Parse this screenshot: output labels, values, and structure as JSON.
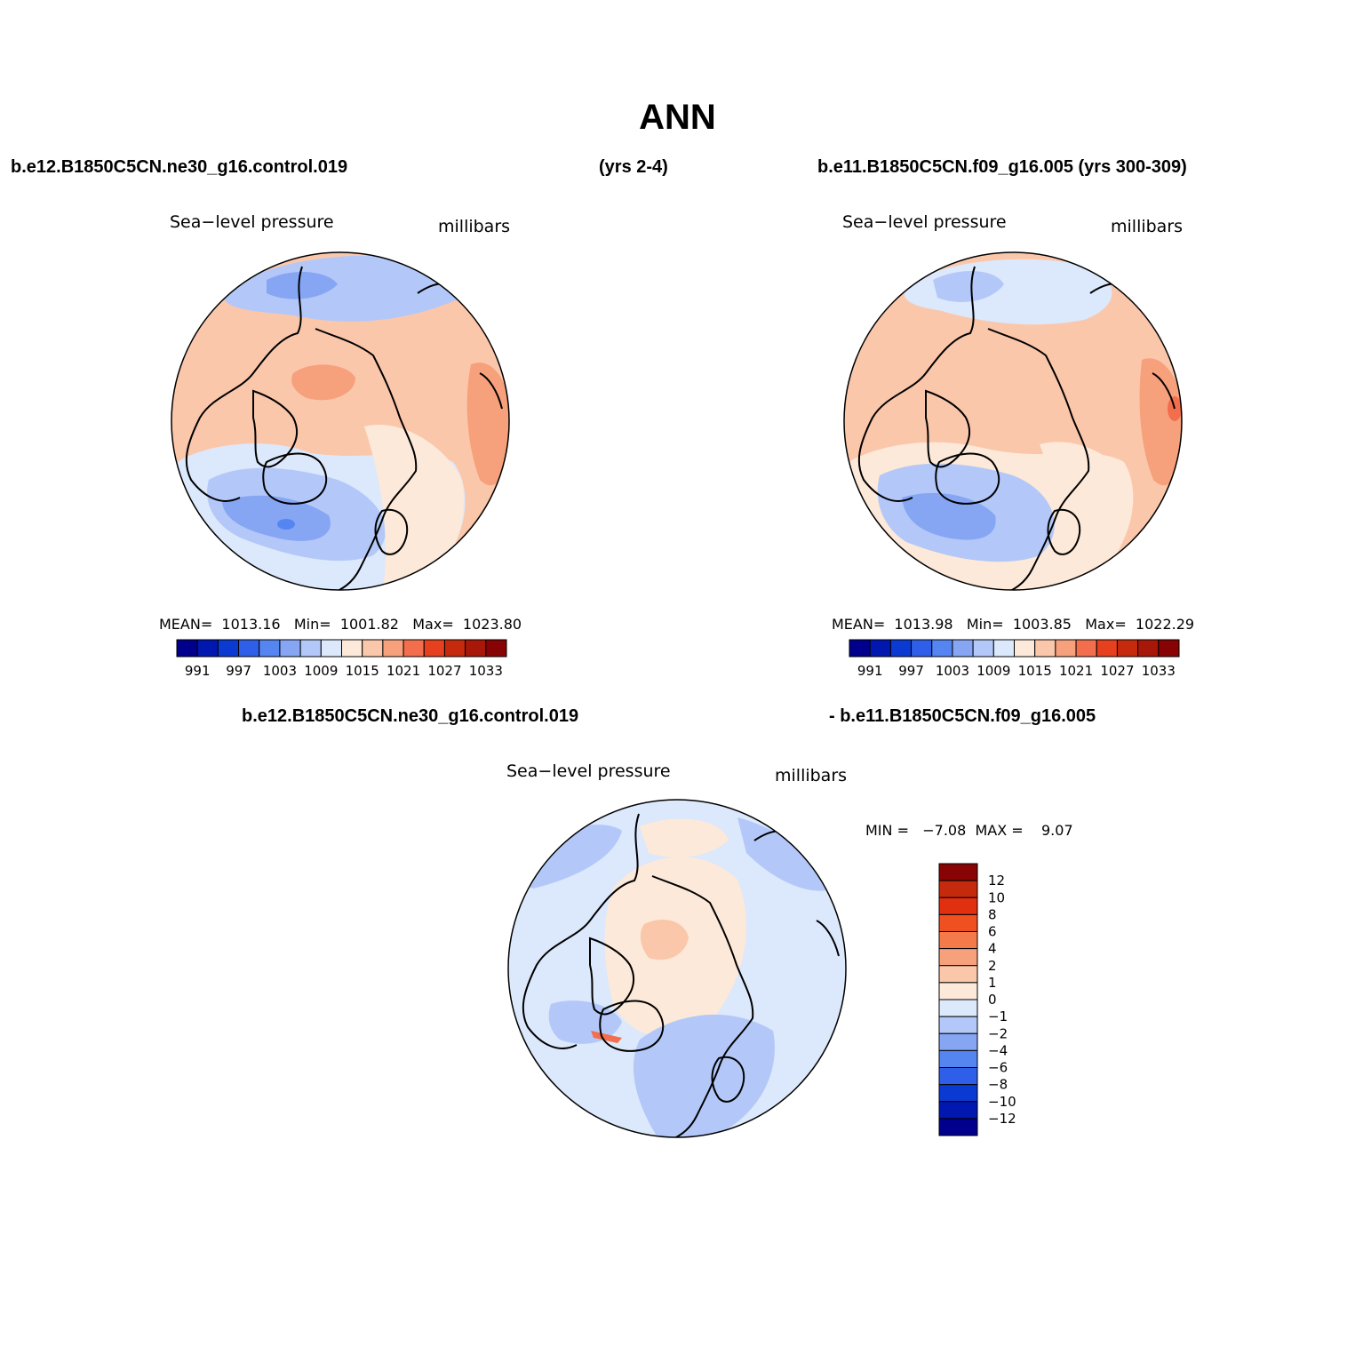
{
  "title": "ANN",
  "headers": {
    "left_case": "b.e12.B1850C5CN.ne30_g16.control.019",
    "left_years": "(yrs 2-4)",
    "right_case": "b.e11.B1850C5CN.f09_g16.005 (yrs 300-309)",
    "diff_case_a": "b.e12.B1850C5CN.ne30_g16.control.019",
    "diff_case_b": "- b.e11.B1850C5CN.f09_g16.005"
  },
  "panels": [
    {
      "variable": "Sea−level pressure",
      "units": "millibars",
      "stats": {
        "mean_label": "MEAN=",
        "mean": "1013.16",
        "min_label": "Min=",
        "min": "1001.82",
        "max_label": "Max=",
        "max": "1023.80"
      }
    },
    {
      "variable": "Sea−level pressure",
      "units": "millibars",
      "stats": {
        "mean_label": "MEAN=",
        "mean": "1013.98",
        "min_label": "Min=",
        "min": "1003.85",
        "max_label": "Max=",
        "max": "1022.29"
      }
    },
    {
      "variable": "Sea−level pressure",
      "units": "millibars",
      "stats": {
        "min_label": "MIN =",
        "min": "−7.08",
        "max_label": "MAX =",
        "max": "9.07"
      }
    }
  ],
  "colorbars": {
    "abs": {
      "colors": [
        "#00008c",
        "#0018b0",
        "#0a3ad2",
        "#2f5fe8",
        "#5585f0",
        "#86a6f4",
        "#b3c8f8",
        "#dce8fb",
        "#fde9d9",
        "#fbc7ab",
        "#f7a07c",
        "#f26e4d",
        "#e6401e",
        "#c42a0b",
        "#a81808",
        "#880404"
      ],
      "labels": [
        "991",
        "997",
        "1003",
        "1009",
        "1015",
        "1021",
        "1027",
        "1033"
      ]
    },
    "diff": {
      "colors": [
        "#00008c",
        "#0018b0",
        "#0a3ad2",
        "#2f5fe8",
        "#5585f0",
        "#86a6f4",
        "#b3c8f8",
        "#dce8fb",
        "#fde9d9",
        "#fbc7ab",
        "#f7a07c",
        "#f57a4a",
        "#f05020",
        "#e03010",
        "#c42a0b",
        "#880404"
      ],
      "labels": [
        "12",
        "10",
        "8",
        "6",
        "4",
        "2",
        "1",
        "0",
        "−1",
        "−2",
        "−4",
        "−6",
        "−8",
        "−10",
        "−12"
      ]
    }
  },
  "map_colors": {
    "ocean_low": "#dce8fb",
    "low1": "#b3c8f8",
    "low2": "#86a6f4",
    "low3": "#5585f0",
    "high1": "#fde9d9",
    "high2": "#fbc7ab",
    "high3": "#f7a07c",
    "high4": "#f26e4d"
  }
}
